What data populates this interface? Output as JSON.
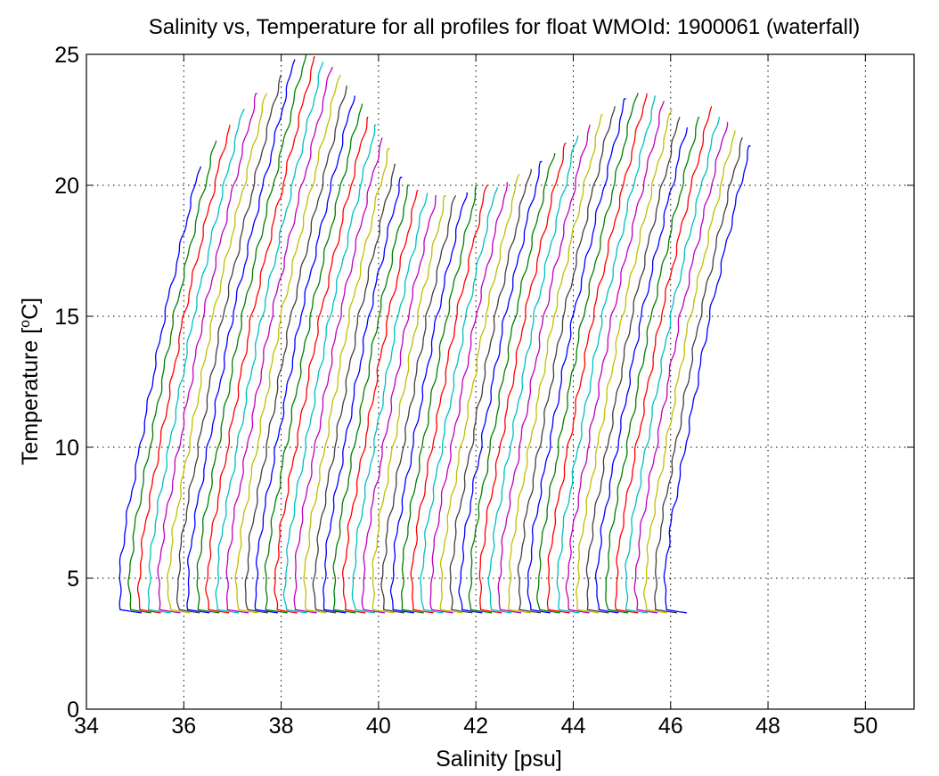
{
  "chart_data": {
    "type": "line",
    "title": "Salinity vs, Temperature for all profiles for float WMOId: 1900061 (waterfall)",
    "xlabel": "Salinity [psu]",
    "ylabel_main": "Temperature [",
    "ylabel_sup": "o",
    "ylabel_end": "C]",
    "xlim": [
      34,
      51
    ],
    "ylim": [
      0,
      25
    ],
    "xticks": [
      34,
      36,
      38,
      40,
      42,
      44,
      46,
      48,
      50
    ],
    "yticks": [
      0,
      5,
      10,
      15,
      20,
      25
    ],
    "grid": true,
    "colors": [
      "#0000ff",
      "#008000",
      "#ff0000",
      "#00bfbf",
      "#bf00bf",
      "#bfbf00",
      "#404040"
    ],
    "profile_spacing_psu": 0.2,
    "first_profile_base_salinity_psu": 34.95,
    "profile_shape": {
      "T": [
        3.7,
        3.8,
        4.5,
        5.5,
        7,
        9,
        11,
        13,
        15,
        17,
        19,
        20.5
      ],
      "dS": [
        0.05,
        -0.25,
        -0.27,
        -0.25,
        -0.15,
        0.05,
        0.25,
        0.45,
        0.65,
        0.9,
        1.15,
        1.35
      ]
    },
    "profile_top_temperatures": [
      20.7,
      21.7,
      22.3,
      22.9,
      23.5,
      23.5,
      24.2,
      24.8,
      25,
      24.9,
      24.7,
      24.5,
      24.2,
      23.8,
      23.4,
      23.1,
      22.6,
      22.3,
      21.8,
      21.4,
      20.8,
      20.3,
      20,
      19.8,
      19.7,
      19.6,
      19.6,
      19.6,
      19.7,
      20,
      20,
      19.9,
      20.1,
      20.4,
      20.6,
      20.9,
      21.2,
      21.6,
      21.9,
      22.3,
      22.7,
      23,
      23.3,
      23.5,
      23.5,
      23.4,
      23.2,
      22.9,
      22.6,
      22.2,
      22.6,
      23,
      22.6,
      22.4,
      22.1,
      21.8,
      21.5
    ]
  }
}
